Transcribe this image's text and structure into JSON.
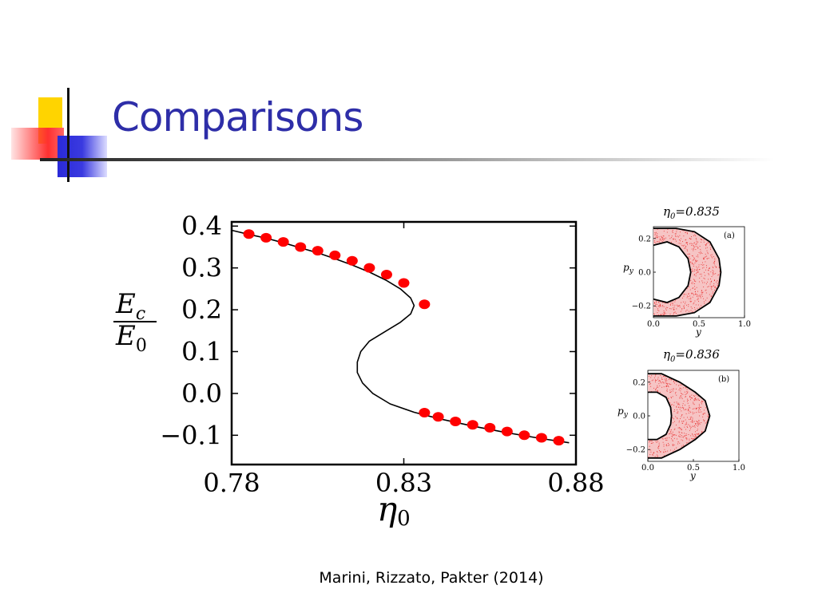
{
  "slide": {
    "title": "Comparisons",
    "citation": "Marini, Rizzato, Pakter (2014)"
  },
  "colors": {
    "title": "#2e2ea8",
    "curve": "#000000",
    "points": "#ff0000",
    "inset_fill": "#e83030"
  },
  "chart_data": [
    {
      "type": "line",
      "ylabel_num": "E",
      "ylabel_num_sub": "c",
      "ylabel_den": "E",
      "ylabel_den_sub": "0",
      "xlabel_main": "η",
      "xlabel_sub": "0",
      "xlim": [
        0.78,
        0.88
      ],
      "ylim": [
        -0.17,
        0.41
      ],
      "x_ticks": [
        0.78,
        0.83,
        0.88
      ],
      "x_tick_labels": [
        "0.78",
        "0.83",
        "0.88"
      ],
      "y_ticks": [
        0.4,
        0.3,
        0.2,
        0.1,
        0.0,
        -0.1
      ],
      "y_tick_labels": [
        "0.4",
        "0.3",
        "0.2",
        "0.1",
        "0.0",
        "−0.1"
      ],
      "series": [
        {
          "kind": "curve",
          "points": [
            [
              0.78,
              0.39
            ],
            [
              0.785,
              0.38
            ],
            [
              0.79,
              0.371
            ],
            [
              0.795,
              0.36
            ],
            [
              0.8,
              0.348
            ],
            [
              0.805,
              0.336
            ],
            [
              0.81,
              0.322
            ],
            [
              0.815,
              0.307
            ],
            [
              0.82,
              0.29
            ],
            [
              0.825,
              0.27
            ],
            [
              0.829,
              0.25
            ],
            [
              0.832,
              0.228
            ],
            [
              0.833,
              0.21
            ],
            [
              0.832,
              0.19
            ],
            [
              0.829,
              0.17
            ],
            [
              0.825,
              0.15
            ],
            [
              0.82,
              0.125
            ],
            [
              0.8175,
              0.1
            ],
            [
              0.8165,
              0.075
            ],
            [
              0.8165,
              0.05
            ],
            [
              0.818,
              0.025
            ],
            [
              0.821,
              0.0
            ],
            [
              0.826,
              -0.025
            ],
            [
              0.833,
              -0.045
            ],
            [
              0.84,
              -0.06
            ],
            [
              0.85,
              -0.078
            ],
            [
              0.86,
              -0.094
            ],
            [
              0.87,
              -0.108
            ],
            [
              0.878,
              -0.118
            ]
          ]
        },
        {
          "kind": "points",
          "points": [
            [
              0.785,
              0.381
            ],
            [
              0.79,
              0.372
            ],
            [
              0.795,
              0.362
            ],
            [
              0.8,
              0.35
            ],
            [
              0.805,
              0.341
            ],
            [
              0.81,
              0.33
            ],
            [
              0.815,
              0.317
            ],
            [
              0.82,
              0.3
            ],
            [
              0.825,
              0.284
            ],
            [
              0.83,
              0.264
            ],
            [
              0.836,
              0.213
            ],
            [
              0.836,
              -0.046
            ],
            [
              0.84,
              -0.056
            ],
            [
              0.845,
              -0.067
            ],
            [
              0.85,
              -0.075
            ],
            [
              0.855,
              -0.082
            ],
            [
              0.86,
              -0.091
            ],
            [
              0.865,
              -0.1
            ],
            [
              0.87,
              -0.106
            ],
            [
              0.875,
              -0.113
            ]
          ]
        }
      ]
    },
    {
      "type": "scatter",
      "panel_label": "(a)",
      "title_eta": "η",
      "title_sub": "0",
      "title_value": "=0.835",
      "xlabel": "y",
      "ylabel_main": "p",
      "ylabel_sub": "y",
      "xlim": [
        0.0,
        1.0
      ],
      "ylim": [
        -0.27,
        0.27
      ],
      "x_tick_labels": [
        "0.0",
        "0.5",
        "1.0"
      ],
      "y_tick_labels": [
        "0.2",
        "0.0",
        "−0.2"
      ],
      "outer_boundary": [
        [
          0.0,
          0.26
        ],
        [
          0.25,
          0.26
        ],
        [
          0.45,
          0.24
        ],
        [
          0.62,
          0.18
        ],
        [
          0.72,
          0.08
        ],
        [
          0.74,
          0.0
        ],
        [
          0.72,
          -0.08
        ],
        [
          0.62,
          -0.18
        ],
        [
          0.45,
          -0.24
        ],
        [
          0.25,
          -0.26
        ],
        [
          0.0,
          -0.26
        ]
      ],
      "inner_boundary": [
        [
          0.0,
          0.16
        ],
        [
          0.15,
          0.18
        ],
        [
          0.28,
          0.15
        ],
        [
          0.38,
          0.08
        ],
        [
          0.41,
          0.0
        ],
        [
          0.38,
          -0.08
        ],
        [
          0.28,
          -0.15
        ],
        [
          0.15,
          -0.18
        ],
        [
          0.0,
          -0.16
        ]
      ]
    },
    {
      "type": "scatter",
      "panel_label": "(b)",
      "title_eta": "η",
      "title_sub": "0",
      "title_value": "=0.836",
      "xlabel": "y",
      "ylabel_main": "p",
      "ylabel_sub": "y",
      "xlim": [
        0.0,
        1.0
      ],
      "ylim": [
        -0.27,
        0.27
      ],
      "x_tick_labels": [
        "0.0",
        "0.5",
        "1.0"
      ],
      "y_tick_labels": [
        "0.2",
        "0.0",
        "−0.2"
      ],
      "outer_boundary": [
        [
          0.0,
          0.25
        ],
        [
          0.15,
          0.25
        ],
        [
          0.35,
          0.2
        ],
        [
          0.52,
          0.14
        ],
        [
          0.63,
          0.09
        ],
        [
          0.68,
          0.0
        ],
        [
          0.63,
          -0.09
        ],
        [
          0.52,
          -0.14
        ],
        [
          0.35,
          -0.2
        ],
        [
          0.15,
          -0.25
        ],
        [
          0.0,
          -0.25
        ]
      ],
      "inner_boundary": [
        [
          0.0,
          0.14
        ],
        [
          0.1,
          0.14
        ],
        [
          0.2,
          0.11
        ],
        [
          0.25,
          0.05
        ],
        [
          0.26,
          0.0
        ],
        [
          0.25,
          -0.05
        ],
        [
          0.2,
          -0.11
        ],
        [
          0.1,
          -0.14
        ],
        [
          0.0,
          -0.14
        ]
      ]
    }
  ]
}
